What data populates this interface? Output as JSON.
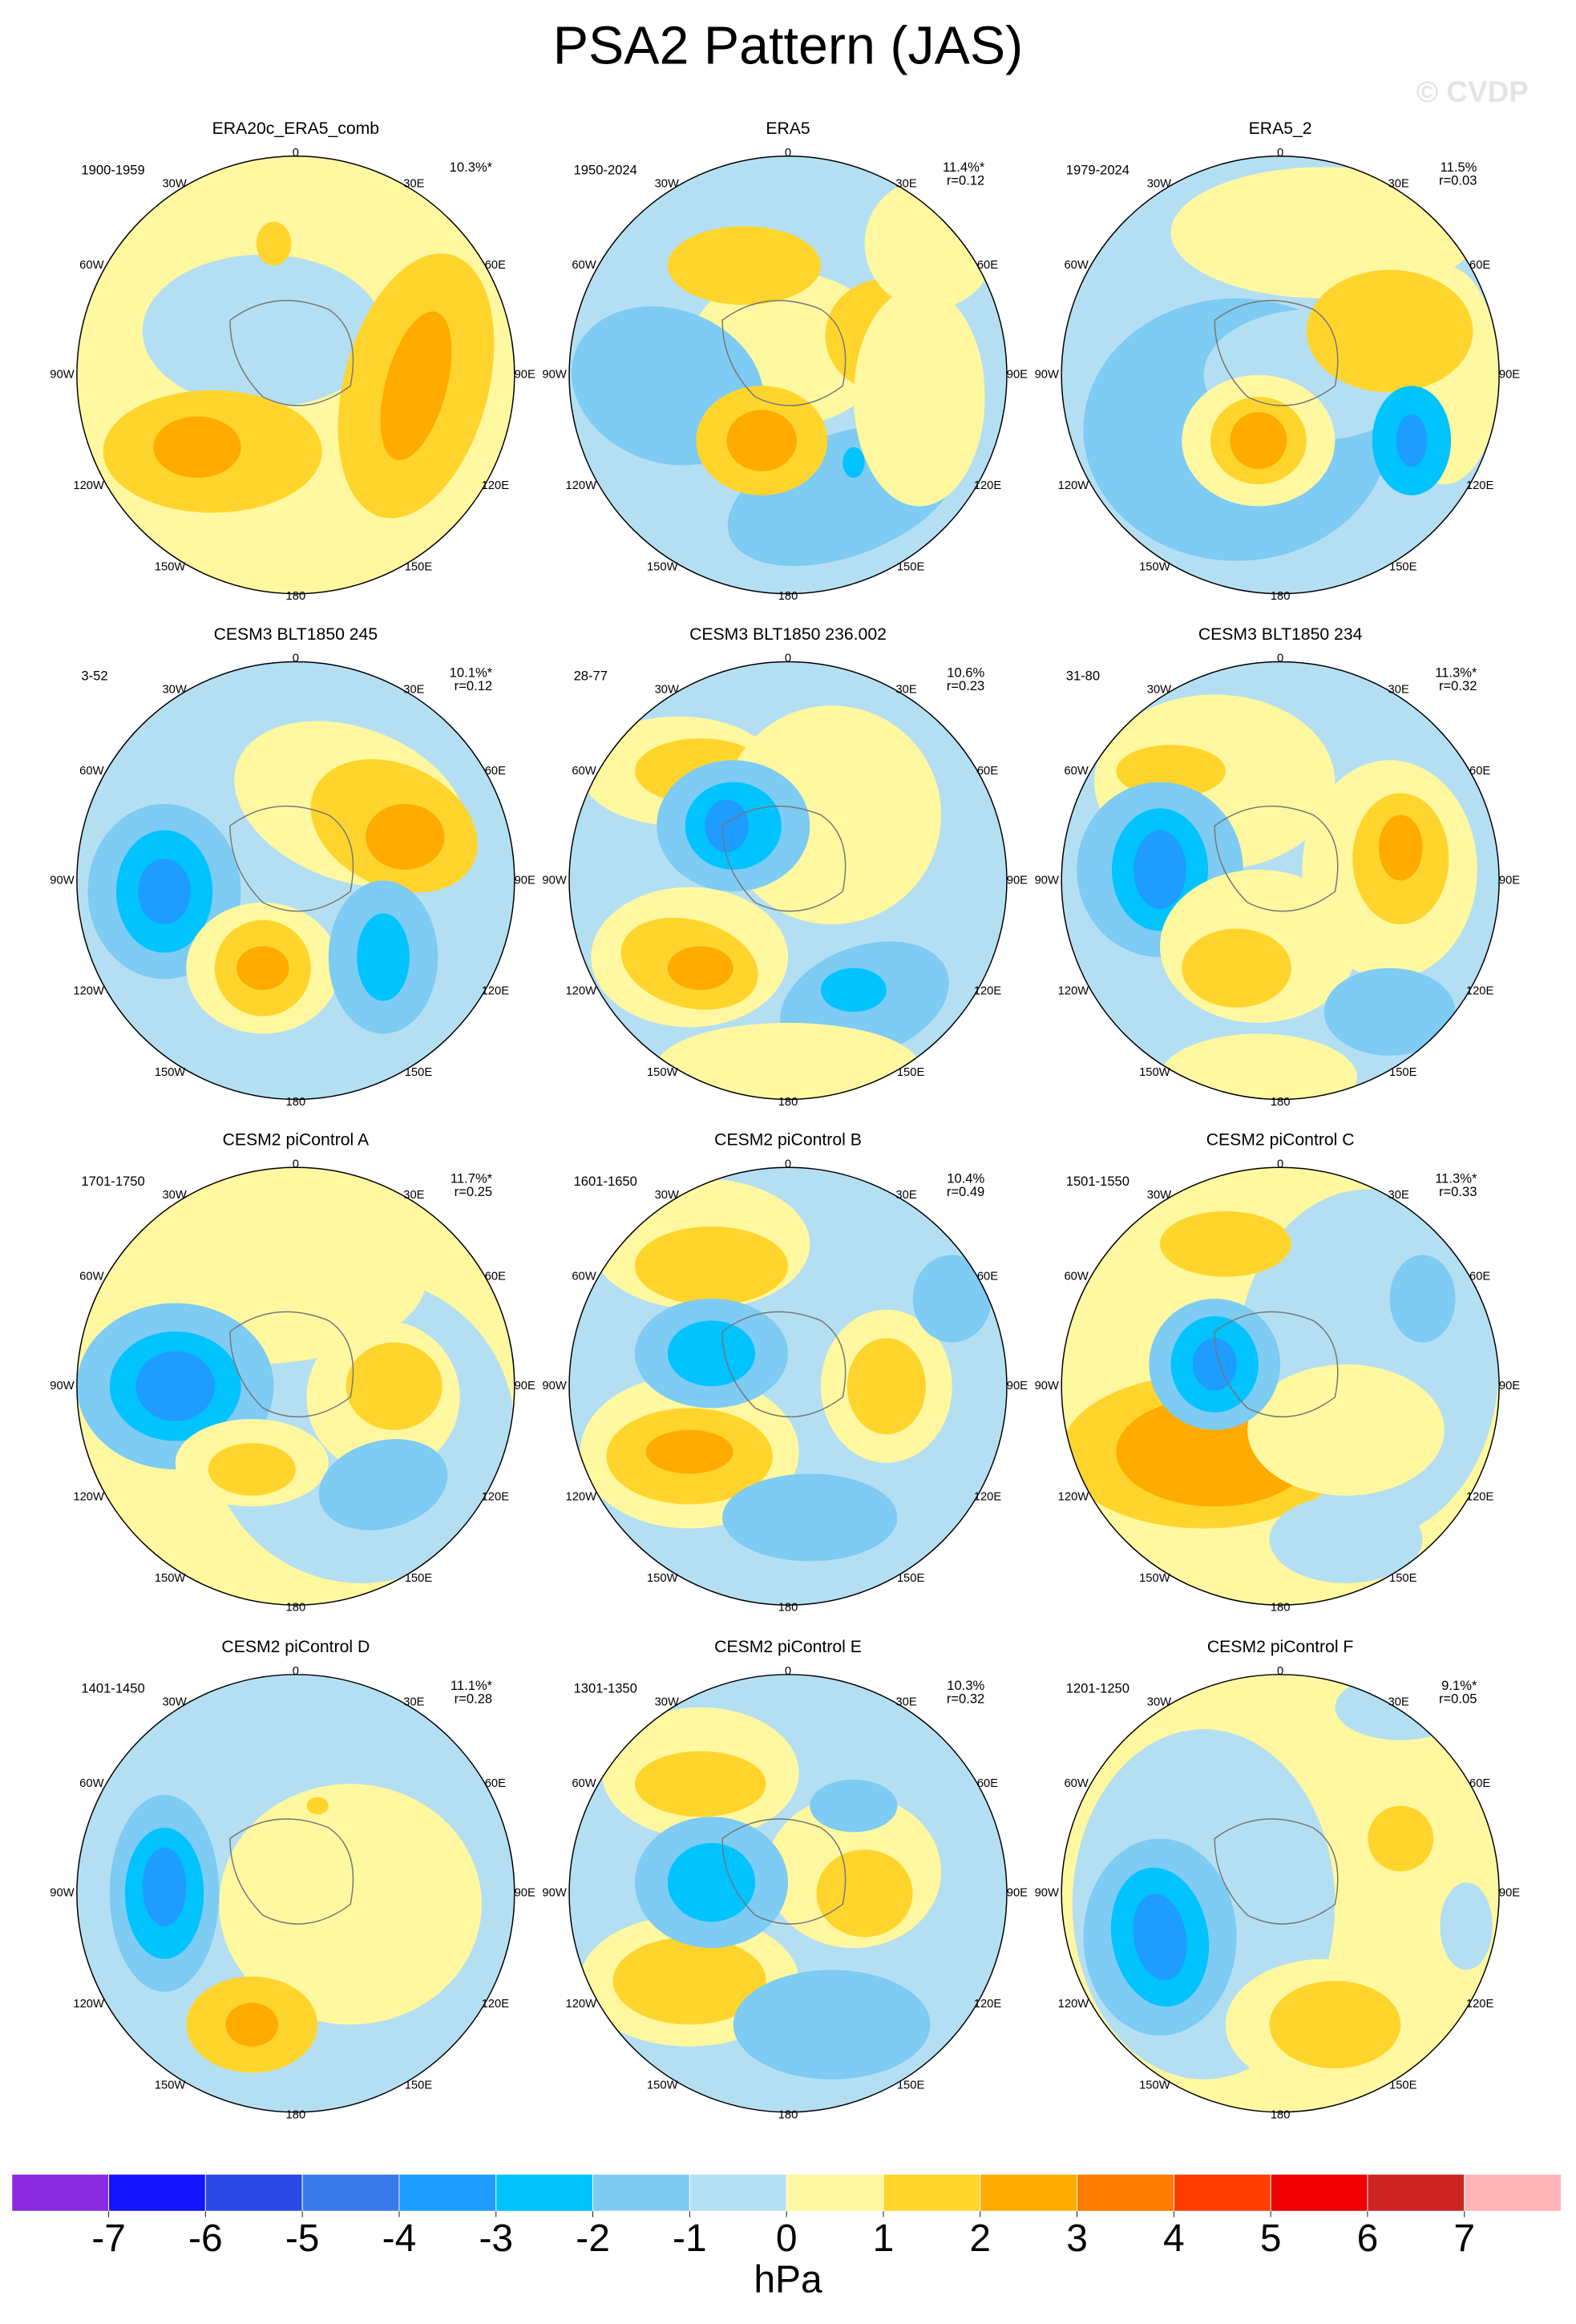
{
  "title": "PSA2 Pattern (JAS)",
  "watermark": "© CVDP",
  "lon_labels": [
    "0",
    "30E",
    "60E",
    "90E",
    "120E",
    "150E",
    "180",
    "150W",
    "120W",
    "90W",
    "60W",
    "30W"
  ],
  "colorbar": {
    "ticks": [
      -7,
      -6,
      -5,
      -4,
      -3,
      -2,
      -1,
      0,
      1,
      2,
      3,
      4,
      5,
      6,
      7
    ],
    "colors": [
      "#8a2be2",
      "#1414ff",
      "#2a48e6",
      "#3a7ae8",
      "#1f9cff",
      "#00c3ff",
      "#7ecbf3",
      "#b4dff3",
      "#fff8a0",
      "#ffd52d",
      "#ffab00",
      "#ff7a00",
      "#ff3c00",
      "#ee0000",
      "#cc2222",
      "#ffb5b5"
    ],
    "label": "hPa"
  },
  "chart_data": [
    {
      "type": "polar-contour",
      "title": "ERA20c_ERA5_comb",
      "period": "1900-1959",
      "stats": [
        "10.3%*"
      ]
    },
    {
      "type": "polar-contour",
      "title": "ERA5",
      "period": "1950-2024",
      "stats": [
        "11.4%*",
        "r=0.12"
      ]
    },
    {
      "type": "polar-contour",
      "title": "ERA5_2",
      "period": "1979-2024",
      "stats": [
        "11.5%",
        "r=0.03"
      ]
    },
    {
      "type": "polar-contour",
      "title": "CESM3 BLT1850 245",
      "period": "3-52",
      "stats": [
        "10.1%*",
        "r=0.12"
      ]
    },
    {
      "type": "polar-contour",
      "title": "CESM3 BLT1850 236.002",
      "period": "28-77",
      "stats": [
        "10.6%",
        "r=0.23"
      ]
    },
    {
      "type": "polar-contour",
      "title": "CESM3 BLT1850 234",
      "period": "31-80",
      "stats": [
        "11.3%*",
        "r=0.32"
      ]
    },
    {
      "type": "polar-contour",
      "title": "CESM2 piControl A",
      "period": "1701-1750",
      "stats": [
        "11.7%*",
        "r=0.25"
      ]
    },
    {
      "type": "polar-contour",
      "title": "CESM2 piControl B",
      "period": "1601-1650",
      "stats": [
        "10.4%",
        "r=0.49"
      ]
    },
    {
      "type": "polar-contour",
      "title": "CESM2 piControl C",
      "period": "1501-1550",
      "stats": [
        "11.3%*",
        "r=0.33"
      ]
    },
    {
      "type": "polar-contour",
      "title": "CESM2 piControl D",
      "period": "1401-1450",
      "stats": [
        "11.1%*",
        "r=0.28"
      ]
    },
    {
      "type": "polar-contour",
      "title": "CESM2 piControl E",
      "period": "1301-1350",
      "stats": [
        "10.3%",
        "r=0.32"
      ]
    },
    {
      "type": "polar-contour",
      "title": "CESM2 piControl F",
      "period": "1201-1250",
      "stats": [
        "9.1%*",
        "r=0.05"
      ]
    }
  ]
}
